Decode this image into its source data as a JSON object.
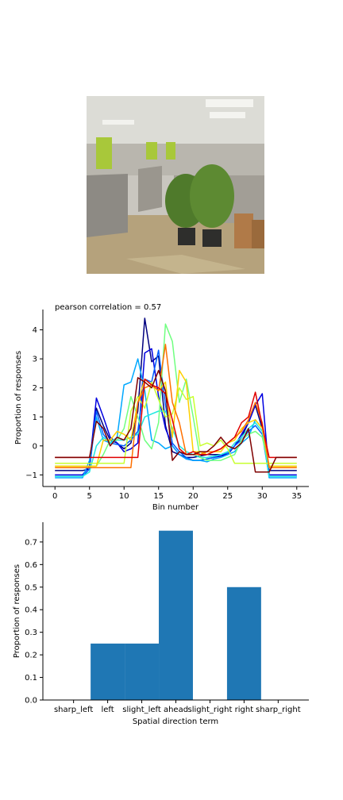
{
  "photo": {
    "icon": "office-cubicles-photo",
    "colors": {
      "ceiling": "#dcdcd6",
      "floor": "#b5a27c",
      "partition": "#8d8a84",
      "accent": "#a8c83a",
      "plant": "#4f7a2b"
    }
  },
  "chart_data": [
    {
      "type": "line",
      "title": "pearson correlation = 0.57",
      "xlabel": "Bin number",
      "ylabel": "Proportion of responses",
      "xlim": [
        -1.75,
        36.75
      ],
      "ylim": [
        -1.4,
        4.7
      ],
      "xticks": [
        0,
        5,
        10,
        15,
        20,
        25,
        30,
        35
      ],
      "yticks": [
        -1,
        0,
        1,
        2,
        3,
        4
      ],
      "grid": false,
      "x": [
        0,
        1,
        2,
        3,
        4,
        5,
        6,
        7,
        8,
        9,
        10,
        11,
        12,
        13,
        14,
        15,
        16,
        17,
        18,
        19,
        20,
        21,
        22,
        23,
        24,
        25,
        26,
        27,
        28,
        29,
        30,
        31,
        32,
        33,
        34,
        35
      ],
      "series": [
        {
          "color": "#00007f",
          "values": [
            -0.85,
            -0.85,
            -0.85,
            -0.85,
            -0.85,
            -0.8,
            1.3,
            0.7,
            0.2,
            0.1,
            -0.1,
            0.1,
            1.2,
            4.4,
            2.9,
            3.1,
            0.7,
            -0.2,
            -0.3,
            -0.4,
            -0.4,
            -0.35,
            -0.3,
            -0.3,
            -0.3,
            -0.3,
            0.0,
            0.3,
            0.8,
            1.4,
            0.6,
            -0.85,
            -0.85,
            -0.85,
            -0.85,
            -0.85
          ]
        },
        {
          "color": "#0000e0",
          "values": [
            -1.0,
            -1.0,
            -1.0,
            -1.0,
            -1.0,
            -0.7,
            1.65,
            1.0,
            0.3,
            0.1,
            -0.2,
            -0.1,
            0.1,
            3.2,
            3.35,
            1.7,
            0.6,
            0.0,
            -0.3,
            -0.45,
            -0.5,
            -0.5,
            -0.45,
            -0.4,
            -0.35,
            -0.3,
            0.0,
            0.4,
            0.8,
            1.4,
            1.8,
            -1.0,
            -1.0,
            -1.0,
            -1.0,
            -1.0
          ]
        },
        {
          "color": "#0060ff",
          "values": [
            -1.05,
            -1.05,
            -1.05,
            -1.05,
            -1.05,
            -0.8,
            1.2,
            0.4,
            0.1,
            0.05,
            0.0,
            0.2,
            0.5,
            2.3,
            2.2,
            3.3,
            1.4,
            0.1,
            -0.2,
            -0.4,
            -0.5,
            -0.5,
            -0.45,
            -0.4,
            -0.3,
            -0.25,
            0.0,
            0.2,
            0.5,
            0.7,
            0.4,
            -1.05,
            -1.05,
            -1.05,
            -1.05,
            -1.05
          ]
        },
        {
          "color": "#00a8ff",
          "values": [
            -1.1,
            -1.1,
            -1.1,
            -1.1,
            -1.1,
            -0.5,
            1.0,
            0.2,
            0.1,
            0.3,
            2.1,
            2.2,
            3.0,
            1.9,
            0.2,
            0.1,
            -0.1,
            0.0,
            -0.3,
            -0.45,
            -0.5,
            -0.5,
            -0.55,
            -0.45,
            -0.4,
            -0.3,
            -0.2,
            0.1,
            0.3,
            0.9,
            0.6,
            -1.1,
            -1.1,
            -1.1,
            -1.1,
            -1.1
          ]
        },
        {
          "color": "#20e8e0",
          "values": [
            -1.05,
            -1.05,
            -1.05,
            -1.05,
            -1.05,
            -0.9,
            0.0,
            0.3,
            0.1,
            0.2,
            0.2,
            0.3,
            0.4,
            1.0,
            1.1,
            1.2,
            1.2,
            0.6,
            0.0,
            -0.2,
            -0.3,
            -0.4,
            -0.4,
            -0.35,
            -0.3,
            -0.2,
            0.1,
            0.3,
            0.6,
            0.8,
            0.5,
            -1.05,
            -1.05,
            -1.05,
            -1.05,
            -1.05
          ]
        },
        {
          "color": "#70ff80",
          "values": [
            -0.7,
            -0.7,
            -0.7,
            -0.7,
            -0.7,
            -0.7,
            -0.7,
            -0.3,
            0.2,
            0.2,
            0.6,
            1.7,
            1.0,
            0.2,
            -0.1,
            0.8,
            4.2,
            3.6,
            1.5,
            2.3,
            1.0,
            -0.4,
            -0.5,
            -0.5,
            -0.5,
            -0.4,
            -0.3,
            0.2,
            0.4,
            0.5,
            0.3,
            -0.7,
            -0.7,
            -0.7,
            -0.7,
            -0.7
          ]
        },
        {
          "color": "#c8ff30",
          "values": [
            -0.6,
            -0.6,
            -0.6,
            -0.6,
            -0.6,
            -0.6,
            -0.6,
            -0.6,
            -0.6,
            -0.6,
            -0.6,
            1.2,
            1.7,
            1.3,
            2.2,
            1.6,
            1.0,
            1.1,
            2.0,
            1.6,
            1.7,
            0.0,
            0.1,
            0.0,
            0.2,
            -0.1,
            -0.6,
            -0.6,
            -0.6,
            -0.6,
            -0.6,
            -0.6,
            -0.6,
            -0.6,
            -0.6,
            -0.6
          ]
        },
        {
          "color": "#ffd000",
          "values": [
            -0.7,
            -0.7,
            -0.7,
            -0.7,
            -0.7,
            -0.7,
            -0.7,
            0.2,
            0.2,
            0.5,
            0.4,
            0.2,
            1.5,
            2.3,
            2.1,
            1.9,
            2.2,
            0.3,
            2.6,
            2.2,
            -0.2,
            -0.2,
            -0.3,
            -0.2,
            -0.2,
            0.1,
            0.2,
            0.6,
            0.8,
            0.9,
            0.6,
            -0.7,
            -0.7,
            -0.7,
            -0.7,
            -0.7
          ]
        },
        {
          "color": "#ff7000",
          "values": [
            -0.75,
            -0.75,
            -0.75,
            -0.75,
            -0.75,
            -0.75,
            -0.75,
            -0.75,
            -0.75,
            -0.75,
            -0.75,
            -0.75,
            1.5,
            2.0,
            2.1,
            1.9,
            3.5,
            1.5,
            0.8,
            -0.3,
            -0.3,
            -0.3,
            -0.2,
            -0.2,
            -0.1,
            0.1,
            0.3,
            0.5,
            0.9,
            1.5,
            0.8,
            -0.75,
            -0.75,
            -0.75,
            -0.75,
            -0.75
          ]
        },
        {
          "color": "#e00000",
          "values": [
            -0.4,
            -0.4,
            -0.4,
            -0.4,
            -0.4,
            -0.4,
            -0.4,
            -0.4,
            -0.4,
            -0.4,
            -0.4,
            -0.4,
            -0.4,
            2.3,
            2.1,
            2.0,
            1.8,
            0.9,
            -0.1,
            -0.3,
            -0.2,
            -0.3,
            -0.3,
            -0.2,
            -0.1,
            0.1,
            0.3,
            0.8,
            1.0,
            1.85,
            0.7,
            -0.4,
            -0.4,
            -0.4,
            -0.4,
            -0.4
          ]
        },
        {
          "color": "#7f0000",
          "values": [
            -0.4,
            -0.4,
            -0.4,
            -0.4,
            -0.4,
            -0.4,
            0.85,
            0.6,
            0.0,
            0.3,
            0.2,
            0.6,
            2.35,
            2.2,
            2.0,
            2.6,
            1.9,
            -0.5,
            -0.2,
            -0.3,
            -0.3,
            -0.2,
            -0.2,
            0.0,
            0.3,
            0.0,
            -0.1,
            0.1,
            0.6,
            -0.9,
            -0.9,
            -0.9,
            -0.4,
            -0.4,
            -0.4,
            -0.4
          ]
        }
      ]
    },
    {
      "type": "bar",
      "title": "",
      "xlabel": "Spatial direction term",
      "ylabel": "Proportion of responses",
      "categories": [
        "sharp_left",
        "left",
        "slight_left",
        "ahead",
        "slight_right",
        "right",
        "sharp_right"
      ],
      "values": [
        0.0,
        0.25,
        0.25,
        0.75,
        0.0,
        0.5,
        0.0
      ],
      "ylim": [
        0.0,
        0.7875
      ],
      "yticks": [
        "0.0",
        "0.1",
        "0.2",
        "0.3",
        "0.4",
        "0.5",
        "0.6",
        "0.7"
      ],
      "bar_color": "#1f77b4",
      "grid": false
    }
  ]
}
